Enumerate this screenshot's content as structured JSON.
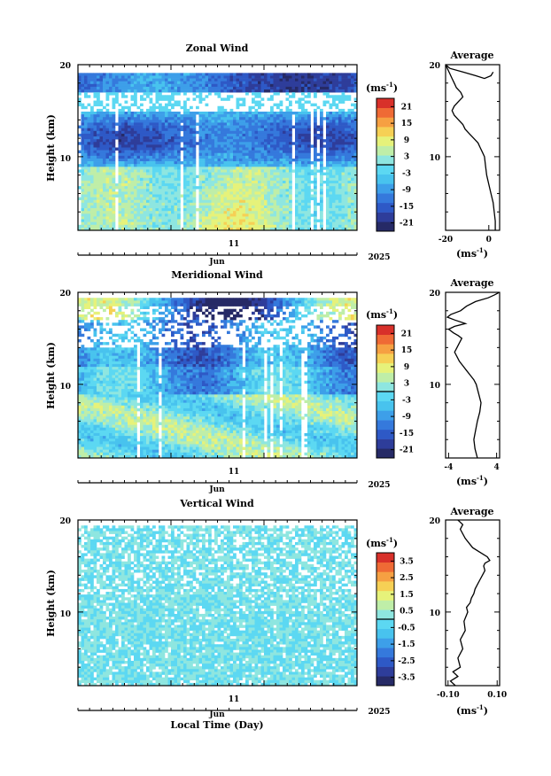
{
  "colors": {
    "map": [
      "#262a66",
      "#2e3d9a",
      "#2e59c6",
      "#3579dc",
      "#3d9fe9",
      "#48c3ee",
      "#5cd8f2",
      "#8ee6e0",
      "#bfeea8",
      "#e6f27a",
      "#f6d055",
      "#f6a042",
      "#ef6a35",
      "#d8302a"
    ]
  },
  "x_axis": {
    "day_label": "11",
    "month_label": "Jun",
    "year_label": "2025",
    "xlabel": "Local Time (Day)"
  },
  "chart_data": [
    {
      "type": "heatmap",
      "title": "Zonal Wind",
      "ylabel": "Height (km)",
      "ylim": [
        2,
        20
      ],
      "yticks": [
        10,
        20
      ],
      "colorbar": {
        "unit": "(ms",
        "unit_sup": "-1",
        "unit_close": ")",
        "ticks": [
          "21",
          "15",
          "9",
          "3",
          "-3",
          "-9",
          "-15",
          "-21"
        ],
        "range": [
          -24,
          24
        ]
      },
      "field": "zonal"
    },
    {
      "type": "heatmap",
      "title": "Meridional Wind",
      "ylabel": "Height (km)",
      "ylim": [
        2,
        20
      ],
      "yticks": [
        10,
        20
      ],
      "colorbar": {
        "unit": "(ms",
        "unit_sup": "-1",
        "unit_close": ")",
        "ticks": [
          "21",
          "15",
          "9",
          "3",
          "-3",
          "-9",
          "-15",
          "-21"
        ],
        "range": [
          -24,
          24
        ]
      },
      "field": "meridional"
    },
    {
      "type": "heatmap",
      "title": "Vertical Wind",
      "ylabel": "Height (km)",
      "ylim": [
        2,
        20
      ],
      "yticks": [
        10,
        20
      ],
      "colorbar": {
        "unit": "(ms",
        "unit_sup": "-1",
        "unit_close": ")",
        "ticks": [
          "3.5",
          "2.5",
          "1.5",
          "0.5",
          "-0.5",
          "-1.5",
          "-2.5",
          "-3.5"
        ],
        "range": [
          -4,
          4
        ]
      },
      "field": "vertical"
    },
    {
      "type": "line",
      "title": "Average",
      "ylim": [
        2,
        20
      ],
      "yticks": [
        10,
        20
      ],
      "xlim": [
        -20,
        5
      ],
      "xticks": [
        -20,
        0
      ],
      "xticklabels": [
        "-20",
        "0"
      ],
      "xlabel": "(ms",
      "xlabel_sup": "-1",
      "xlabel_close": ")",
      "series": [
        {
          "x": [
            3,
            3,
            2.5,
            2,
            1,
            0,
            -1,
            -1.5,
            -2,
            -3,
            -4,
            -5,
            -7,
            -9,
            -11,
            -12,
            -14,
            -16,
            -17,
            -16,
            -14,
            -12,
            -13,
            -15,
            -16,
            -17,
            -18,
            -19,
            -20,
            -18,
            -12,
            -6,
            -2,
            1,
            2
          ],
          "y": [
            2,
            3,
            4,
            5,
            6,
            7,
            8,
            9,
            10,
            10.5,
            11,
            11.5,
            12,
            12.5,
            13,
            13.5,
            14,
            14.5,
            15,
            15.5,
            16,
            16.5,
            17,
            17.5,
            18,
            18.5,
            19,
            19.5,
            20,
            19.6,
            19.2,
            18.8,
            18.5,
            18.8,
            19.2
          ]
        }
      ]
    },
    {
      "type": "line",
      "title": "Average",
      "ylim": [
        2,
        20
      ],
      "yticks": [
        10,
        20
      ],
      "xlim": [
        -4.5,
        4.5
      ],
      "xticks": [
        -4,
        4
      ],
      "xticklabels": [
        "-4",
        "4"
      ],
      "xlabel": "(ms",
      "xlabel_sup": "-1",
      "xlabel_close": ")",
      "series": [
        {
          "x": [
            0.8,
            0.4,
            0.2,
            0.5,
            0.8,
            1.2,
            1.4,
            1.0,
            0.6,
            0.2,
            -0.4,
            -1.0,
            -1.6,
            -2.2,
            -2.6,
            -3.0,
            -2.6,
            -2.2,
            -1.8,
            -2.4,
            -3.2,
            -4.0,
            -3.0,
            -1.2,
            -3.0,
            -4.2,
            -3.6,
            -2.0,
            -1.0,
            0.5,
            2.6,
            3.6,
            4.2,
            4.4
          ],
          "y": [
            2,
            3,
            4,
            5,
            6,
            7,
            8,
            9,
            10,
            10.5,
            11,
            11.5,
            12,
            12.5,
            13,
            13.5,
            14,
            14.5,
            15,
            15.3,
            15.6,
            16,
            16.3,
            16.6,
            17,
            17.3,
            17.6,
            18,
            18.5,
            19,
            19.4,
            19.7,
            19.9,
            20
          ]
        }
      ]
    },
    {
      "type": "line",
      "title": "Average",
      "ylim": [
        2,
        20
      ],
      "yticks": [
        10,
        20
      ],
      "xlim": [
        -0.11,
        0.11
      ],
      "xticks": [
        -0.1,
        0.1
      ],
      "xticklabels": [
        "-0.10",
        "0.10"
      ],
      "xlabel": "(ms",
      "xlabel_sup": "-1",
      "xlabel_close": ")",
      "series": [
        {
          "x": [
            -0.07,
            -0.09,
            -0.06,
            -0.08,
            -0.05,
            -0.06,
            -0.04,
            -0.05,
            -0.03,
            -0.035,
            -0.02,
            -0.025,
            -0.01,
            -0.005,
            0.005,
            0.01,
            0.02,
            0.03,
            0.04,
            0.05,
            0.045,
            0.05,
            0.07,
            0.06,
            0.03,
            0.0,
            -0.03,
            -0.05,
            -0.04,
            -0.06
          ],
          "y": [
            2,
            2.5,
            3,
            3.5,
            4,
            5,
            6,
            7,
            8,
            9,
            10,
            10.5,
            11,
            11.5,
            12,
            12.5,
            13,
            13.5,
            14,
            14.5,
            15,
            15.3,
            15.6,
            16,
            16.5,
            17,
            18,
            19,
            19.5,
            20
          ]
        }
      ]
    }
  ]
}
